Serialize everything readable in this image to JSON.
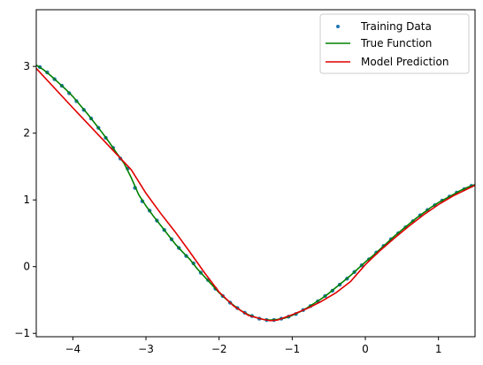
{
  "chart_data": {
    "type": "line",
    "title": "",
    "xlabel": "",
    "ylabel": "",
    "xlim": [
      -4.5,
      1.5
    ],
    "ylim": [
      -1.05,
      3.85
    ],
    "xticks": [
      -4,
      -3,
      -2,
      -1,
      0,
      1
    ],
    "yticks": [
      -1,
      0,
      1,
      2,
      3
    ],
    "xtick_labels": [
      "−4",
      "−3",
      "−2",
      "−1",
      "0",
      "1"
    ],
    "ytick_labels": [
      "−1",
      "0",
      "1",
      "2",
      "3"
    ],
    "grid": false,
    "legend_position": "top-right",
    "series": [
      {
        "name": "Training Data",
        "kind": "scatter",
        "color": "#1f77b4",
        "x": [
          -4.45,
          -4.35,
          -4.25,
          -4.15,
          -4.05,
          -3.95,
          -3.85,
          -3.75,
          -3.65,
          -3.55,
          -3.45,
          -3.35,
          -3.25,
          -3.15,
          -3.05,
          -2.95,
          -2.85,
          -2.75,
          -2.65,
          -2.55,
          -2.45,
          -2.35,
          -2.25,
          -2.15,
          -2.05,
          -1.95,
          -1.85,
          -1.75,
          -1.65,
          -1.55,
          -1.45,
          -1.35,
          -1.25,
          -1.15,
          -1.05,
          -0.95,
          -0.85,
          -0.75,
          -0.65,
          -0.55,
          -0.45,
          -0.35,
          -0.25,
          -0.15,
          -0.05,
          0.05,
          0.15,
          0.25,
          0.35,
          0.45,
          0.55,
          0.65,
          0.75,
          0.85,
          0.95,
          1.05,
          1.15,
          1.25,
          1.35,
          1.45
        ],
        "y": [
          2.99,
          2.91,
          2.81,
          2.71,
          2.6,
          2.48,
          2.35,
          2.22,
          2.08,
          1.93,
          1.78,
          1.62,
          1.47,
          1.18,
          0.98,
          0.84,
          0.69,
          0.55,
          0.41,
          0.28,
          0.16,
          0.05,
          -0.09,
          -0.2,
          -0.33,
          -0.44,
          -0.54,
          -0.62,
          -0.69,
          -0.74,
          -0.78,
          -0.8,
          -0.8,
          -0.78,
          -0.75,
          -0.71,
          -0.65,
          -0.59,
          -0.52,
          -0.44,
          -0.36,
          -0.27,
          -0.18,
          -0.08,
          0.02,
          0.11,
          0.21,
          0.31,
          0.41,
          0.5,
          0.59,
          0.68,
          0.77,
          0.85,
          0.92,
          0.99,
          1.05,
          1.11,
          1.16,
          1.21
        ]
      },
      {
        "name": "True Function",
        "kind": "line",
        "color": "#008000",
        "x": [
          -4.5,
          -4.4,
          -4.3,
          -4.2,
          -4.1,
          -4.0,
          -3.9,
          -3.8,
          -3.7,
          -3.6,
          -3.5,
          -3.4,
          -3.3,
          -3.2,
          -3.1,
          -3.0,
          -2.9,
          -2.8,
          -2.7,
          -2.6,
          -2.5,
          -2.4,
          -2.3,
          -2.2,
          -2.1,
          -2.0,
          -1.9,
          -1.8,
          -1.7,
          -1.6,
          -1.5,
          -1.4,
          -1.3,
          -1.2,
          -1.1,
          -1.0,
          -0.9,
          -0.8,
          -0.7,
          -0.6,
          -0.5,
          -0.4,
          -0.3,
          -0.2,
          -0.1,
          0.0,
          0.1,
          0.2,
          0.3,
          0.4,
          0.5,
          0.6,
          0.7,
          0.8,
          0.9,
          1.0,
          1.1,
          1.2,
          1.3,
          1.4,
          1.5
        ],
        "y": [
          3.02,
          2.95,
          2.86,
          2.76,
          2.66,
          2.55,
          2.42,
          2.29,
          2.15,
          2.01,
          1.86,
          1.7,
          1.55,
          1.33,
          1.08,
          0.91,
          0.76,
          0.62,
          0.48,
          0.34,
          0.22,
          0.11,
          -0.03,
          -0.15,
          -0.27,
          -0.39,
          -0.49,
          -0.58,
          -0.66,
          -0.72,
          -0.76,
          -0.79,
          -0.8,
          -0.79,
          -0.77,
          -0.73,
          -0.68,
          -0.62,
          -0.55,
          -0.48,
          -0.4,
          -0.31,
          -0.22,
          -0.13,
          -0.03,
          0.07,
          0.16,
          0.26,
          0.36,
          0.46,
          0.55,
          0.64,
          0.73,
          0.81,
          0.89,
          0.96,
          1.02,
          1.08,
          1.14,
          1.19,
          1.23
        ]
      },
      {
        "name": "Model Prediction",
        "kind": "line",
        "color": "#e00000",
        "x": [
          -4.5,
          -4.0,
          -3.5,
          -3.2,
          -3.0,
          -2.8,
          -2.6,
          -2.4,
          -2.2,
          -2.0,
          -1.8,
          -1.6,
          -1.4,
          -1.3,
          -1.2,
          -1.0,
          -0.8,
          -0.6,
          -0.4,
          -0.2,
          0.0,
          0.2,
          0.4,
          0.6,
          0.8,
          1.0,
          1.2,
          1.5
        ],
        "y": [
          2.97,
          2.38,
          1.8,
          1.45,
          1.1,
          0.8,
          0.52,
          0.22,
          -0.09,
          -0.38,
          -0.59,
          -0.73,
          -0.79,
          -0.81,
          -0.8,
          -0.72,
          -0.63,
          -0.52,
          -0.39,
          -0.22,
          0.03,
          0.24,
          0.43,
          0.61,
          0.78,
          0.93,
          1.06,
          1.22
        ]
      }
    ]
  }
}
